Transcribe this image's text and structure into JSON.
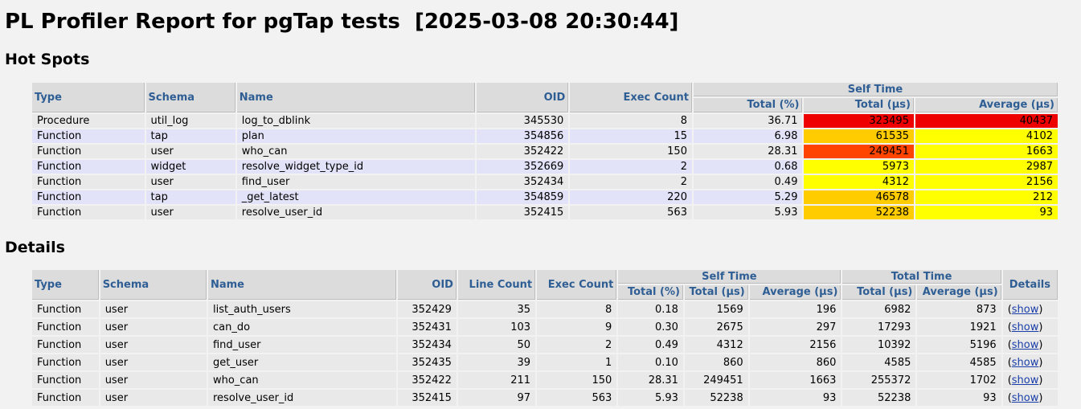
{
  "title": "PL Profiler Report for pgTap tests  [2025-03-08 20:30:44]",
  "hot_spots": {
    "heading": "Hot Spots",
    "columns": {
      "type": "Type",
      "schema": "Schema",
      "name": "Name",
      "oid": "OID",
      "exec_count": "Exec Count",
      "self_time": "Self Time",
      "total_pct": "Total (%)",
      "total_us": "Total (µs)",
      "average_us": "Average (µs)"
    },
    "rows": [
      {
        "type": "Procedure",
        "schema": "util_log",
        "name": "log_to_dblink",
        "oid": "345530",
        "exec_count": "8",
        "total_pct": "36.71",
        "total_us": "323495",
        "average_us": "40437",
        "total_color": "#ee0000",
        "avg_color": "#ee0000"
      },
      {
        "type": "Function",
        "schema": "tap",
        "name": "plan",
        "oid": "354856",
        "exec_count": "15",
        "total_pct": "6.98",
        "total_us": "61535",
        "average_us": "4102",
        "total_color": "#ffcc00",
        "avg_color": "#ffff00"
      },
      {
        "type": "Function",
        "schema": "user",
        "name": "who_can",
        "oid": "352422",
        "exec_count": "150",
        "total_pct": "28.31",
        "total_us": "249451",
        "average_us": "1663",
        "total_color": "#ff4400",
        "avg_color": "#ffff00"
      },
      {
        "type": "Function",
        "schema": "widget",
        "name": "resolve_widget_type_id",
        "oid": "352669",
        "exec_count": "2",
        "total_pct": "0.68",
        "total_us": "5973",
        "average_us": "2987",
        "total_color": "#ffff00",
        "avg_color": "#ffff00"
      },
      {
        "type": "Function",
        "schema": "user",
        "name": "find_user",
        "oid": "352434",
        "exec_count": "2",
        "total_pct": "0.49",
        "total_us": "4312",
        "average_us": "2156",
        "total_color": "#ffff00",
        "avg_color": "#ffff00"
      },
      {
        "type": "Function",
        "schema": "tap",
        "name": "_get_latest",
        "oid": "354859",
        "exec_count": "220",
        "total_pct": "5.29",
        "total_us": "46578",
        "average_us": "212",
        "total_color": "#ffcc00",
        "avg_color": "#ffff00"
      },
      {
        "type": "Function",
        "schema": "user",
        "name": "resolve_user_id",
        "oid": "352415",
        "exec_count": "563",
        "total_pct": "5.93",
        "total_us": "52238",
        "average_us": "93",
        "total_color": "#ffcc00",
        "avg_color": "#ffff00"
      }
    ]
  },
  "details": {
    "heading": "Details",
    "columns": {
      "type": "Type",
      "schema": "Schema",
      "name": "Name",
      "oid": "OID",
      "line_count": "Line Count",
      "exec_count": "Exec Count",
      "self_time": "Self Time",
      "total_time": "Total Time",
      "details": "Details",
      "total_pct": "Total (%)",
      "total_us": "Total (µs)",
      "average_us": "Average (µs)"
    },
    "show_label": "show",
    "rows": [
      {
        "type": "Function",
        "schema": "user",
        "name": "list_auth_users",
        "oid": "352429",
        "line_count": "35",
        "exec_count": "8",
        "self_pct": "0.18",
        "self_total": "1569",
        "self_avg": "196",
        "tt_total": "6982",
        "tt_avg": "873"
      },
      {
        "type": "Function",
        "schema": "user",
        "name": "can_do",
        "oid": "352431",
        "line_count": "103",
        "exec_count": "9",
        "self_pct": "0.30",
        "self_total": "2675",
        "self_avg": "297",
        "tt_total": "17293",
        "tt_avg": "1921"
      },
      {
        "type": "Function",
        "schema": "user",
        "name": "find_user",
        "oid": "352434",
        "line_count": "50",
        "exec_count": "2",
        "self_pct": "0.49",
        "self_total": "4312",
        "self_avg": "2156",
        "tt_total": "10392",
        "tt_avg": "5196"
      },
      {
        "type": "Function",
        "schema": "user",
        "name": "get_user",
        "oid": "352435",
        "line_count": "39",
        "exec_count": "1",
        "self_pct": "0.10",
        "self_total": "860",
        "self_avg": "860",
        "tt_total": "4585",
        "tt_avg": "4585"
      },
      {
        "type": "Function",
        "schema": "user",
        "name": "who_can",
        "oid": "352422",
        "line_count": "211",
        "exec_count": "150",
        "self_pct": "28.31",
        "self_total": "249451",
        "self_avg": "1663",
        "tt_total": "255372",
        "tt_avg": "1702"
      },
      {
        "type": "Function",
        "schema": "user",
        "name": "resolve_user_id",
        "oid": "352415",
        "line_count": "97",
        "exec_count": "563",
        "self_pct": "5.93",
        "self_total": "52238",
        "self_avg": "93",
        "tt_total": "52238",
        "tt_avg": "93"
      }
    ]
  }
}
